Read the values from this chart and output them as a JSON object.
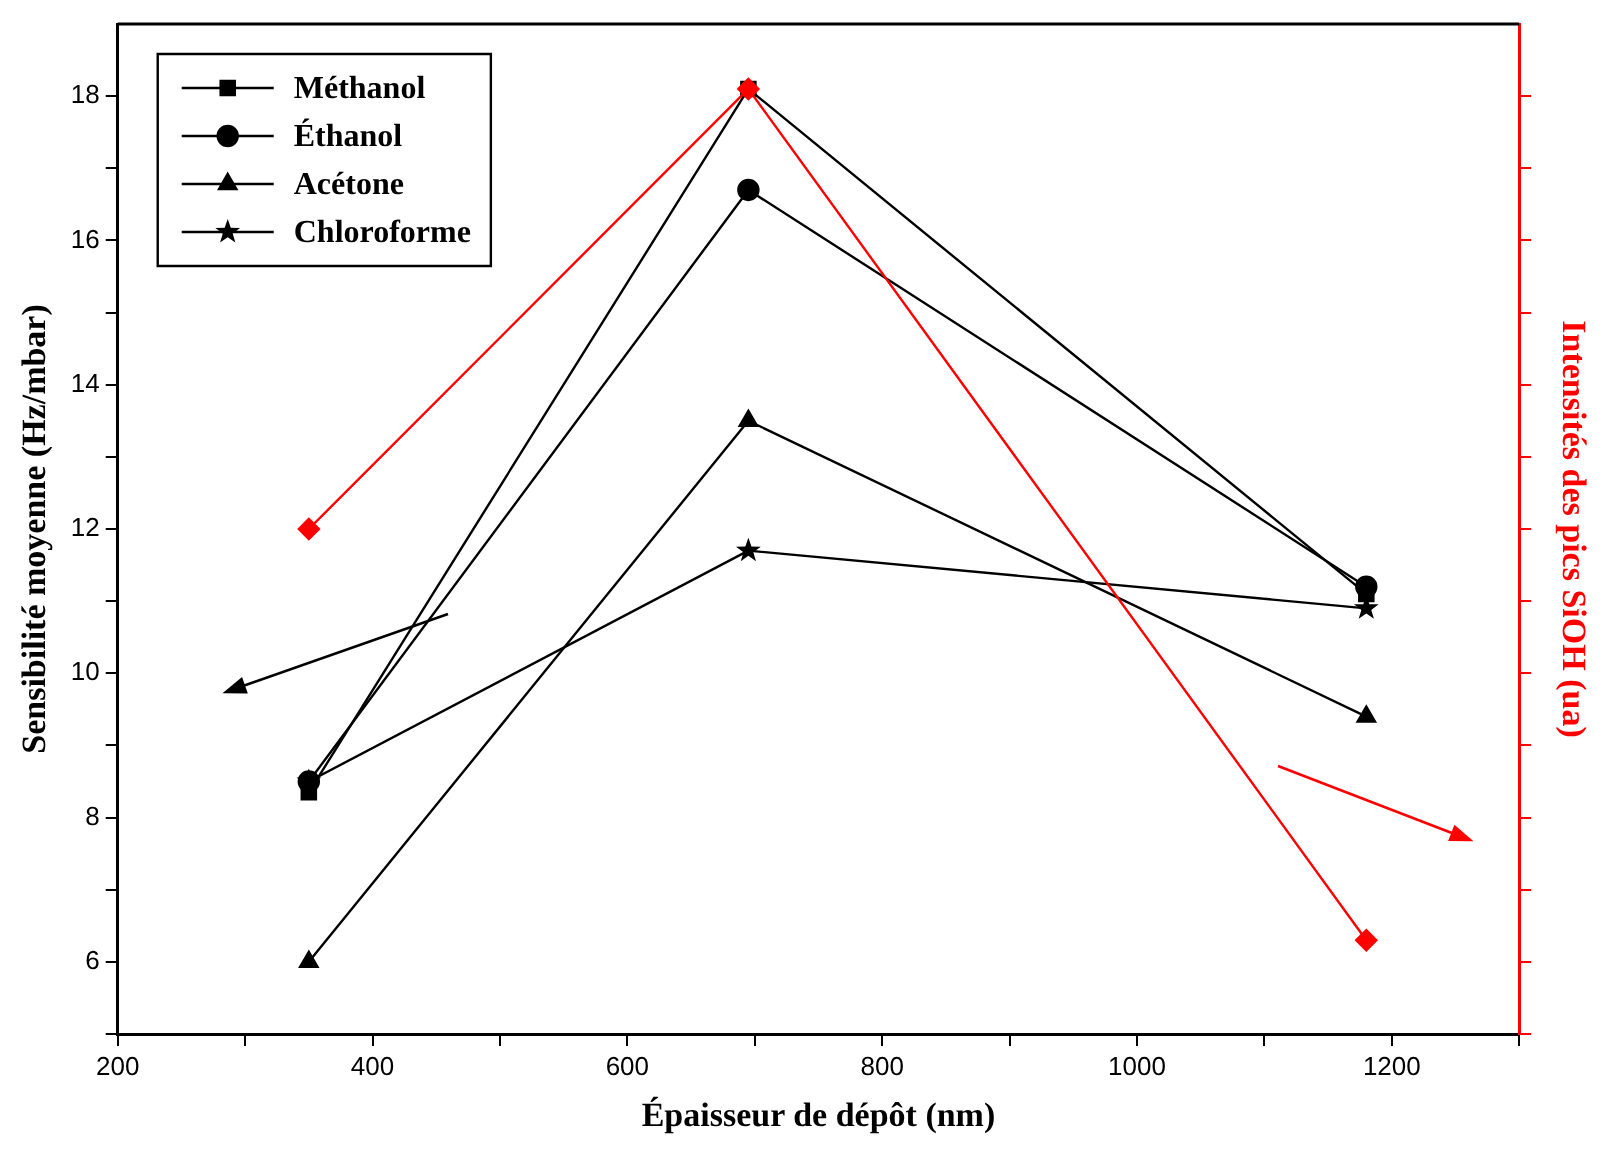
{
  "chart_data": {
    "type": "line",
    "xlabel": "Épaisseur de dépôt (nm)",
    "ylabel": "Sensibilité moyenne (Hz/mbar)",
    "y2label": "Intensités des pics SiOH (ua)",
    "x": [
      350,
      695,
      1180
    ],
    "series": [
      {
        "name": "Méthanol",
        "color": "#000000",
        "marker": "square",
        "values": [
          8.35,
          18.1,
          11.1
        ]
      },
      {
        "name": "Éthanol",
        "color": "#000000",
        "marker": "circle",
        "values": [
          8.5,
          16.7,
          11.2
        ]
      },
      {
        "name": "Acétone",
        "color": "#000000",
        "marker": "triangle",
        "values": [
          6.0,
          13.5,
          9.4
        ]
      },
      {
        "name": "Chloroforme",
        "color": "#000000",
        "marker": "star",
        "values": [
          8.5,
          11.7,
          10.9
        ]
      },
      {
        "color": "#ff0000",
        "marker": "diamond",
        "values": [
          12.0,
          18.1,
          6.3
        ]
      }
    ],
    "xlim": [
      200,
      1300
    ],
    "xticks": [
      200,
      {
        "value": 300,
        "label": null
      },
      400,
      {
        "value": 500,
        "label": null
      },
      600,
      {
        "value": 700,
        "label": null
      },
      800,
      {
        "value": 900,
        "label": null
      },
      1000,
      {
        "value": 1100,
        "label": null
      },
      1200,
      {
        "value": 1300,
        "label": null
      }
    ],
    "ylim": [
      5,
      19
    ],
    "yticks": [
      {
        "value": 5,
        "label": null
      },
      6,
      {
        "value": 7,
        "label": null
      },
      8,
      {
        "value": 9,
        "label": null
      },
      10,
      {
        "value": 11,
        "label": null
      },
      12,
      {
        "value": 13,
        "label": null
      },
      14,
      {
        "value": 15,
        "label": null
      },
      16,
      {
        "value": 17,
        "label": null
      },
      18
    ],
    "grid": false,
    "legend": "top left",
    "line_style": "solid"
  }
}
